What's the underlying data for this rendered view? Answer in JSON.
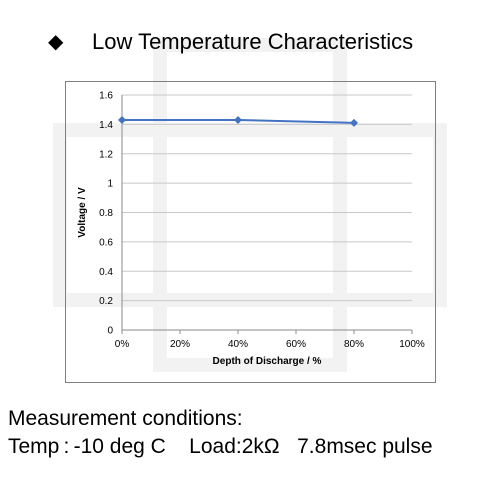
{
  "page": {
    "bullet_glyph": "◆",
    "title": "Low Temperature Characteristics"
  },
  "chart_data": {
    "type": "line",
    "title": "",
    "xlabel": "Depth of Discharge / %",
    "ylabel": "Voltage  /  V",
    "x": [
      0,
      40,
      80
    ],
    "x_ticks": [
      "0%",
      "20%",
      "40%",
      "60%",
      "80%",
      "100%"
    ],
    "y_ticks": [
      "0",
      "0.2",
      "0.4",
      "0.6",
      "0.8",
      "1",
      "1.2",
      "1.4",
      "1.6"
    ],
    "xlim": [
      0,
      100
    ],
    "ylim": [
      0,
      1.6
    ],
    "grid": true,
    "legend": "none",
    "series": [
      {
        "values": [
          1.43,
          1.43,
          1.41
        ],
        "color": "#4472c4",
        "marker": "diamond"
      }
    ]
  },
  "conditions": {
    "heading": "Measurement conditions:",
    "temp": "Temp : -10 deg C",
    "load": "Load:2kΩ",
    "pulse": "7.8msec pulse"
  },
  "watermark": {
    "color": "#f2f2f2"
  }
}
